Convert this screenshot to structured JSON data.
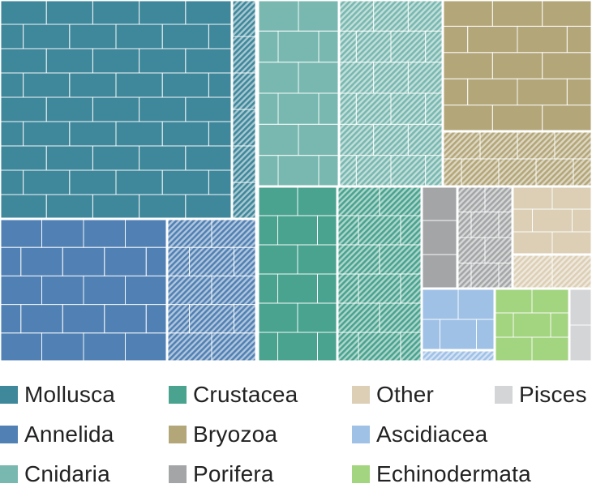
{
  "chart_data": {
    "type": "treemap",
    "title": "",
    "legend_position": "bottom",
    "solid_hatched_variants": true,
    "categories": [
      {
        "name": "Mollusca",
        "color": "#3f879b",
        "solid": 29,
        "hatched": 1
      },
      {
        "name": "Annelida",
        "color": "#5181b4",
        "solid": 11,
        "hatched": 4
      },
      {
        "name": "Cnidaria",
        "color": "#79b8b0",
        "solid": 6,
        "hatched": 7
      },
      {
        "name": "Crustacea",
        "color": "#4aa38f",
        "solid": 5,
        "hatched": 5
      },
      {
        "name": "Bryozoa",
        "color": "#b3a679",
        "solid": 7,
        "hatched": 3
      },
      {
        "name": "Porifera",
        "color": "#a3a5a7",
        "solid": 2,
        "hatched": 3
      },
      {
        "name": "Other",
        "color": "#dccfb5",
        "solid": 2,
        "hatched": 1
      },
      {
        "name": "Ascidiacea",
        "color": "#9fc1e6",
        "solid": 2,
        "hatched": 0.5
      },
      {
        "name": "Echinodermata",
        "color": "#a3d47f",
        "solid": 2,
        "hatched": 0
      },
      {
        "name": "Pisces",
        "color": "#d4d5d6",
        "solid": 0.7,
        "hatched": 0
      }
    ],
    "legend_order": [
      "Mollusca",
      "Crustacea",
      "Other",
      "Pisces",
      "Annelida",
      "Bryozoa",
      "Ascidiacea",
      "Cnidaria",
      "Porifera",
      "Echinodermata"
    ]
  }
}
